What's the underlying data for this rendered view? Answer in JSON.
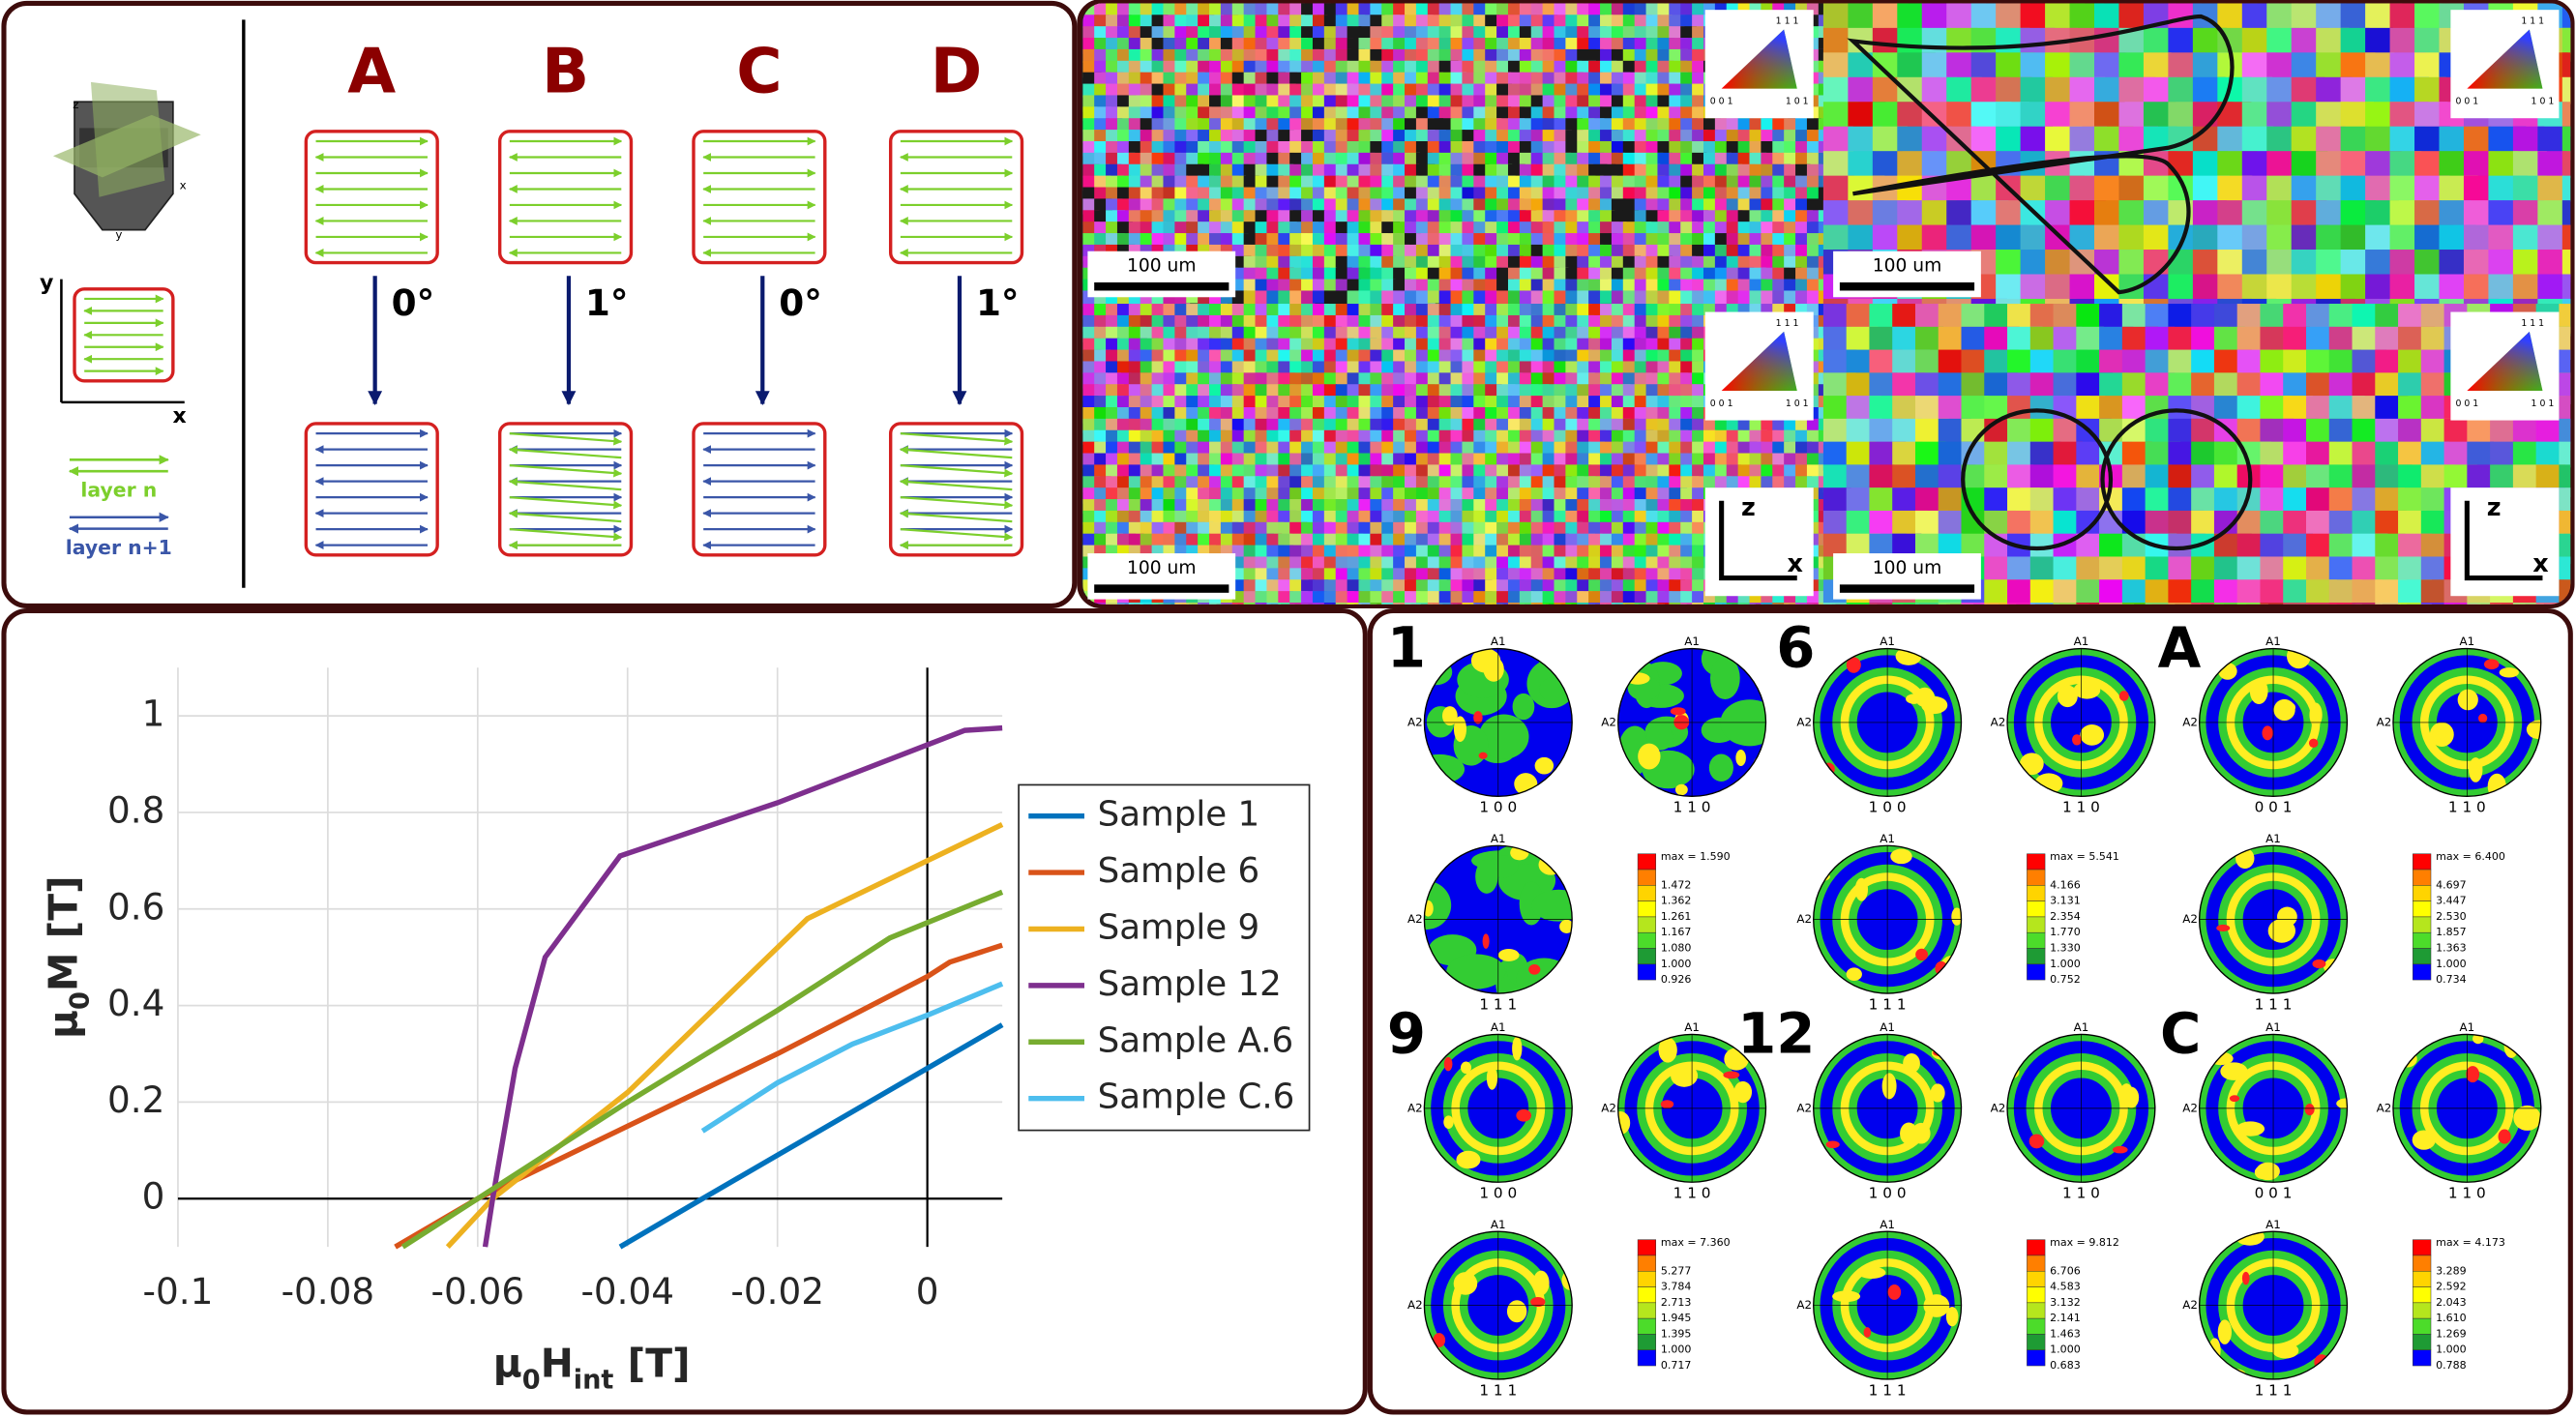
{
  "schematic": {
    "columns": [
      {
        "label": "A",
        "angle": "0°"
      },
      {
        "label": "B",
        "angle": "1°"
      },
      {
        "label": "C",
        "angle": "0°"
      },
      {
        "label": "D",
        "angle": "1°"
      }
    ],
    "sketch_axes": [
      "y",
      "x"
    ],
    "layers": [
      "layer n",
      "layer n+1"
    ]
  },
  "ebsd": {
    "scale_bars": [
      "100 um",
      "100 um",
      "100 um",
      "100 um"
    ],
    "ipf_labels": [
      "1 1 1",
      "0 0 1",
      "1 0 1"
    ],
    "frame_axes": [
      "z",
      "x"
    ]
  },
  "chart_data": {
    "type": "line",
    "x_label": [
      "μ",
      "0",
      "H",
      "int",
      " [T]"
    ],
    "y_label": [
      "μ",
      "0",
      "M [T]"
    ],
    "xlim": [
      -0.1,
      0.01
    ],
    "ylim": [
      -0.1,
      1.1
    ],
    "xticks": [
      -0.1,
      -0.08,
      -0.06,
      -0.04,
      -0.02,
      0
    ],
    "yticks": [
      0,
      0.2,
      0.4,
      0.6,
      0.8,
      1
    ],
    "grid": true,
    "legend": "right",
    "series": [
      {
        "name": "Sample 1",
        "color": "#0072BD",
        "x": [
          -0.041,
          -0.03,
          0,
          0.01
        ],
        "values": [
          -0.1,
          0,
          0.27,
          0.36
        ]
      },
      {
        "name": "Sample 6",
        "color": "#D95319",
        "x": [
          -0.071,
          -0.06,
          -0.04,
          -0.02,
          0,
          0.002,
          0.003,
          0.01
        ],
        "values": [
          -0.1,
          0,
          0.15,
          0.3,
          0.46,
          0.48,
          0.49,
          0.525
        ]
      },
      {
        "name": "Sample 9",
        "color": "#EDB120",
        "x": [
          -0.064,
          -0.058,
          -0.04,
          -0.016,
          0,
          0.01
        ],
        "values": [
          -0.1,
          0,
          0.22,
          0.58,
          0.7,
          0.775
        ]
      },
      {
        "name": "Sample 12",
        "color": "#7E2F8E",
        "x": [
          -0.059,
          -0.058,
          -0.055,
          -0.051,
          -0.041,
          -0.02,
          0,
          0.005,
          0.01
        ],
        "values": [
          -0.1,
          0,
          0.27,
          0.5,
          0.71,
          0.82,
          0.94,
          0.97,
          0.975
        ]
      },
      {
        "name": "Sample A.6",
        "color": "#77AC30",
        "x": [
          -0.07,
          -0.06,
          -0.04,
          -0.02,
          -0.005,
          0.01
        ],
        "values": [
          -0.1,
          0,
          0.2,
          0.39,
          0.54,
          0.635
        ]
      },
      {
        "name": "Sample C.6",
        "color": "#4DBEEE",
        "x": [
          -0.03,
          -0.02,
          -0.01,
          0,
          0.01
        ],
        "values": [
          0.14,
          0.24,
          0.32,
          0.38,
          0.445
        ]
      }
    ]
  },
  "pole_figures": {
    "axis_labels": [
      "A1",
      "A2"
    ],
    "groups": [
      {
        "label": "1",
        "figures": [
          "1 0 0",
          "1 1 0",
          "1 1 1"
        ],
        "colorbar": [
          "max = 1.590",
          "1.472",
          "1.362",
          "1.261",
          "1.167",
          "1.080",
          "1.000",
          "0.926"
        ]
      },
      {
        "label": "6",
        "figures": [
          "1 0 0",
          "1 1 0",
          "1 1 1"
        ],
        "colorbar": [
          "max = 5.541",
          "4.166",
          "3.131",
          "2.354",
          "1.770",
          "1.330",
          "1.000",
          "0.752"
        ]
      },
      {
        "label": "A",
        "figures": [
          "0 0 1",
          "1 1 0",
          "1 1 1"
        ],
        "colorbar": [
          "max = 6.400",
          "4.697",
          "3.447",
          "2.530",
          "1.857",
          "1.363",
          "1.000",
          "0.734"
        ]
      },
      {
        "label": "9",
        "figures": [
          "1 0 0",
          "1 1 0",
          "1 1 1"
        ],
        "colorbar": [
          "max = 7.360",
          "5.277",
          "3.784",
          "2.713",
          "1.945",
          "1.395",
          "1.000",
          "0.717"
        ]
      },
      {
        "label": "12",
        "figures": [
          "1 0 0",
          "1 1 0",
          "1 1 1"
        ],
        "colorbar": [
          "max = 9.812",
          "6.706",
          "4.583",
          "3.132",
          "2.141",
          "1.463",
          "1.000",
          "0.683"
        ]
      },
      {
        "label": "C",
        "figures": [
          "0 0 1",
          "1 1 0",
          "1 1 1"
        ],
        "colorbar": [
          "max = 4.173",
          "3.289",
          "2.592",
          "2.043",
          "1.610",
          "1.269",
          "1.000",
          "0.788"
        ]
      }
    ]
  }
}
